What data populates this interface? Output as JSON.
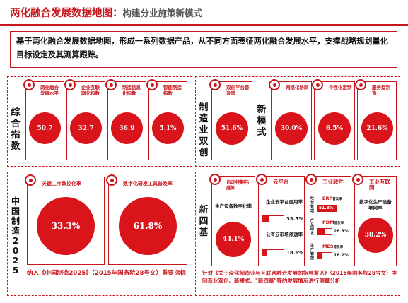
{
  "header": {
    "title": "两化融合发展数据地图：",
    "subtitle": "构建分业施策新模式"
  },
  "intro": "基于两化融合发展数据地图，形成一系列数据产品，从不同方面表征两化融合发展水平，支撑战略规划量化目标设定及其测算跟踪。",
  "composite": {
    "label": "综合指数",
    "cards": [
      {
        "caption": "两化融合发展水平",
        "value": "50.7"
      },
      {
        "caption": "企业互联网化指数",
        "value": "32.7"
      },
      {
        "caption": "制造信息化指数",
        "value": "36.9"
      },
      {
        "caption": "智能制造指数",
        "value": "5.1%"
      }
    ]
  },
  "dual": {
    "label": "制造业双创",
    "cards": [
      {
        "caption": "双创平台普及率",
        "value": "51.6%"
      }
    ]
  },
  "newmode": {
    "label": "新模式",
    "cards": [
      {
        "caption": "网络化协同",
        "value": "30.0%"
      },
      {
        "caption": "个性化定制",
        "value": "6.5%"
      },
      {
        "caption": "服务型制造",
        "value": "21.6%"
      }
    ]
  },
  "china2025": {
    "label": "中国制造2025",
    "cards": [
      {
        "caption": "关键工序数控化率",
        "value": "33.3%"
      },
      {
        "caption": "数字化研发工具普及率",
        "value": "61.8%"
      }
    ],
    "note": "纳入《中国制造2025》（2015年国务院28号文）重要指标"
  },
  "newfour": {
    "label": "新四基",
    "auto": {
      "caption": "自动控制与感知",
      "sub": "生产设备数字化率",
      "value": "44.1%"
    },
    "cloud": {
      "caption": "云平台",
      "items": [
        {
          "label": "企业云平台应用率",
          "value": "33.5%",
          "pct": 33.5
        },
        {
          "label": "公有云市场渗透率",
          "value": "18.6%",
          "pct": 18.6
        }
      ]
    },
    "software": {
      "caption": "工业软件",
      "items": [
        {
          "name": "ERP",
          "tag": "普及率",
          "side": "经营管理",
          "value": "51.8%",
          "pct": 51.8
        },
        {
          "name": "PDM",
          "tag": "普及率",
          "side": "产品研发",
          "value": "26.3%",
          "pct": 26.3
        },
        {
          "name": "MES",
          "tag": "普及率",
          "side": "生产管控",
          "value": "16.2%",
          "pct": 16.2
        }
      ]
    },
    "iiot": {
      "caption": "工业互联网",
      "sub": "数字化生产设备联网率",
      "value": "38.2%"
    },
    "note": "针对《关于深化制造业与互联网融合发展的指导意见》（2016年国务院28号文）中制造业双创、新模式、\"新四基\"等的发展情况进行测算分析"
  }
}
